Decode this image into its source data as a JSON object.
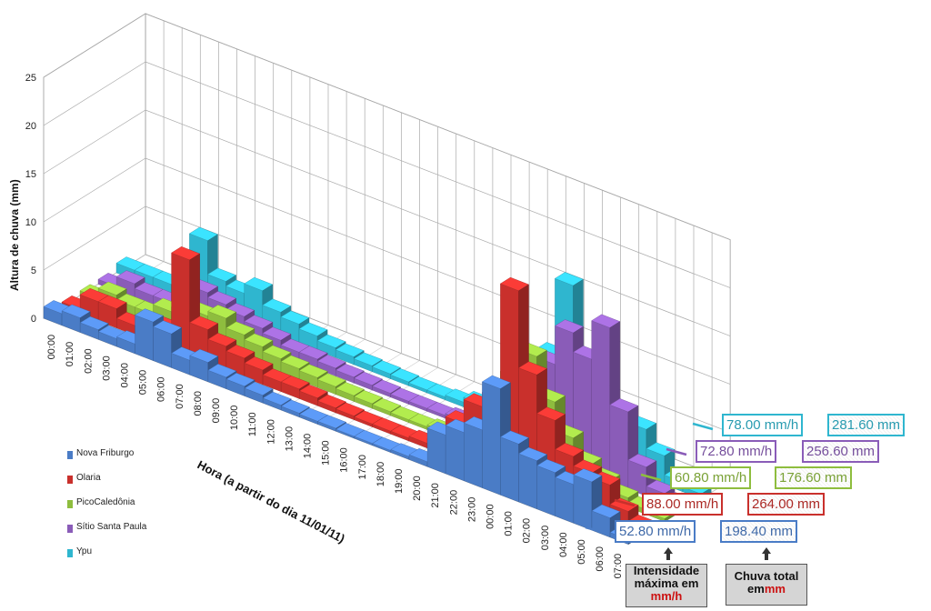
{
  "chart_data": {
    "type": "bar",
    "variant": "3d-clustered-columns",
    "ylabel": "Altura de chuva (mm)",
    "xlabel": "Hora (a partir do dia 11/01/11)",
    "ylim": [
      0,
      25
    ],
    "yticks": [
      "0",
      "5",
      "10",
      "15",
      "20",
      "25"
    ],
    "categories": [
      "00:00",
      "01:00",
      "02:00",
      "03:00",
      "04:00",
      "05:00",
      "06:00",
      "07:00",
      "08:00",
      "09:00",
      "10:00",
      "11:00",
      "12:00",
      "13:00",
      "14:00",
      "15:00",
      "16:00",
      "17:00",
      "18:00",
      "19:00",
      "20:00",
      "21:00",
      "22:00",
      "23:00",
      "00:00",
      "01:00",
      "02:00",
      "03:00",
      "04:00",
      "05:00",
      "06:00",
      "07:00"
    ],
    "grid": true,
    "legend_placement": "bottom-left",
    "series": [
      {
        "name": "Nova Friburgo",
        "color": "#4a7cc6",
        "values": [
          1.2,
          1.5,
          1.0,
          0.8,
          1.0,
          4.0,
          3.5,
          1.5,
          2.0,
          1.2,
          1.0,
          0.8,
          0.5,
          0.4,
          0.3,
          0.3,
          0.2,
          0.2,
          0.2,
          0.3,
          0.5,
          4.0,
          5.0,
          6.0,
          11.0,
          6.0,
          5.0,
          4.5,
          4.0,
          5.0,
          2.0,
          0.5
        ]
      },
      {
        "name": "Olaria",
        "color": "#c9302c",
        "values": [
          0.5,
          2.0,
          2.0,
          1.0,
          1.0,
          2.0,
          10.0,
          3.5,
          2.5,
          2.0,
          1.5,
          1.0,
          1.0,
          0.8,
          0.5,
          0.4,
          0.3,
          0.3,
          0.3,
          0.5,
          1.0,
          4.0,
          6.5,
          8.0,
          20.0,
          12.0,
          8.0,
          5.0,
          4.0,
          3.5,
          1.5,
          0.5
        ]
      },
      {
        "name": "PicoCaledônia",
        "color": "#8ebd3e",
        "values": [
          0.5,
          1.5,
          1.0,
          1.0,
          2.0,
          2.5,
          3.0,
          3.5,
          2.5,
          2.0,
          1.5,
          1.2,
          1.0,
          0.8,
          0.6,
          0.5,
          0.4,
          0.3,
          0.3,
          0.5,
          0.8,
          1.0,
          3.0,
          9.0,
          12.0,
          8.0,
          5.0,
          3.0,
          2.0,
          1.0,
          0.5,
          0.3
        ]
      },
      {
        "name": "Sítio Santa Paula",
        "color": "#8a5cb8",
        "values": [
          0.5,
          1.5,
          1.0,
          1.0,
          2.0,
          3.5,
          3.0,
          2.5,
          2.0,
          1.5,
          1.0,
          1.0,
          0.8,
          0.6,
          0.5,
          0.4,
          0.3,
          0.3,
          0.3,
          0.5,
          1.0,
          1.5,
          3.0,
          6.0,
          10.0,
          14.0,
          12.0,
          16.0,
          8.0,
          3.0,
          1.0,
          0.5
        ]
      },
      {
        "name": "Ypu",
        "color": "#2fb6cf",
        "values": [
          1.0,
          1.0,
          1.0,
          1.0,
          7.0,
          3.5,
          3.0,
          4.0,
          2.5,
          2.0,
          1.5,
          1.0,
          0.8,
          0.6,
          0.5,
          0.4,
          0.3,
          0.3,
          0.5,
          1.0,
          1.5,
          2.0,
          3.0,
          9.0,
          17.0,
          9.0,
          5.0,
          4.0,
          5.0,
          3.0,
          1.0,
          0.5
        ]
      }
    ],
    "annotations": [
      {
        "series": "Ypu",
        "intensity": "78.00 mm/h",
        "total": "281.60 mm"
      },
      {
        "series": "Sítio Santa Paula",
        "intensity": "72.80 mm/h",
        "total": "256.60 mm"
      },
      {
        "series": "PicoCaledônia",
        "intensity": "60.80 mm/h",
        "total": "176.60 mm"
      },
      {
        "series": "Olaria",
        "intensity": "88.00 mm/h",
        "total": "264.00 mm"
      },
      {
        "series": "Nova Friburgo",
        "intensity": "52.80 mm/h",
        "total": "198.40 mm"
      }
    ]
  },
  "key": {
    "intensity": {
      "line1": "Intensidade",
      "line2": "máxima em",
      "unit": "mm/h"
    },
    "total": {
      "line1": "Chuva total",
      "line2": "em",
      "unit": "mm"
    }
  }
}
